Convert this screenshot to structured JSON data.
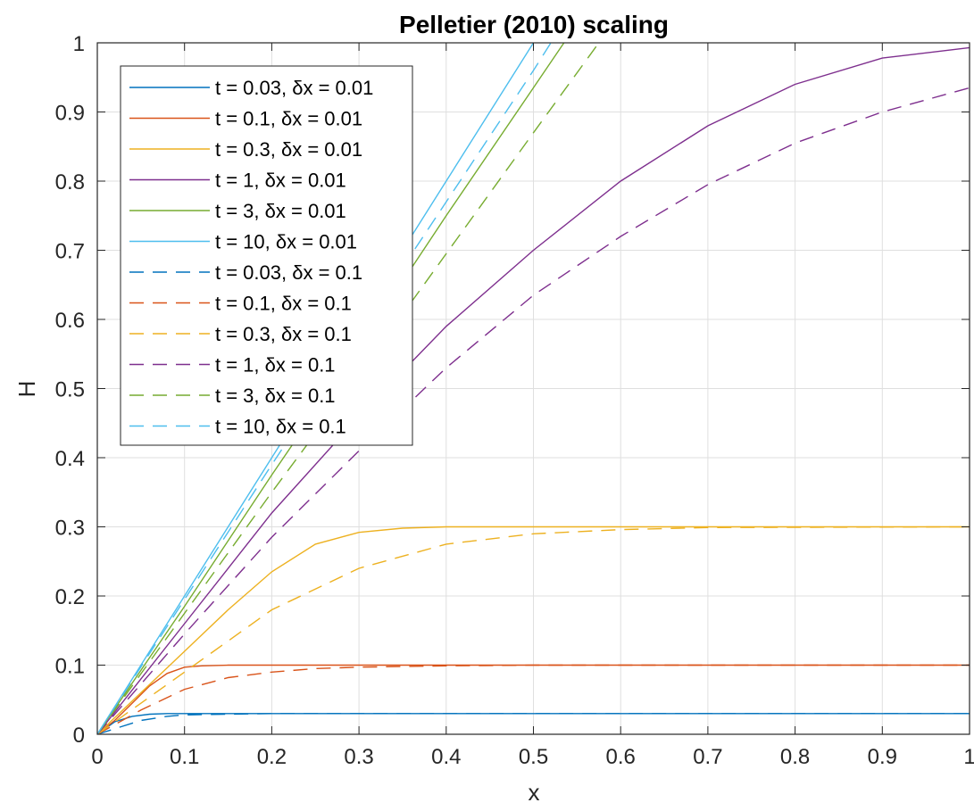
{
  "chart_data": {
    "type": "line",
    "title": "Pelletier (2010) scaling",
    "xlabel": "x",
    "ylabel": "H",
    "xlim": [
      0,
      1
    ],
    "ylim": [
      0,
      1
    ],
    "xticks": [
      0,
      0.1,
      0.2,
      0.3,
      0.4,
      0.5,
      0.6,
      0.7,
      0.8,
      0.9,
      1
    ],
    "xtick_labels": [
      "0",
      "0.1",
      "0.2",
      "0.3",
      "0.4",
      "0.5",
      "0.6",
      "0.7",
      "0.8",
      "0.9",
      "1"
    ],
    "yticks": [
      0,
      0.1,
      0.2,
      0.3,
      0.4,
      0.5,
      0.6,
      0.7,
      0.8,
      0.9,
      1
    ],
    "ytick_labels": [
      "0",
      "0.1",
      "0.2",
      "0.3",
      "0.4",
      "0.5",
      "0.6",
      "0.7",
      "0.8",
      "0.9",
      "1"
    ],
    "grid": true,
    "legend_position": "top-left",
    "series": [
      {
        "name": "t = 0.03, δx = 0.01",
        "color": "#0072BD",
        "dash": "solid",
        "x": [
          0,
          0.02,
          0.04,
          0.06,
          0.08,
          0.1,
          0.15,
          0.2,
          1.0
        ],
        "y": [
          0,
          0.018,
          0.026,
          0.029,
          0.03,
          0.03,
          0.03,
          0.03,
          0.03
        ]
      },
      {
        "name": "t = 0.1, δx = 0.01",
        "color": "#D95319",
        "dash": "solid",
        "x": [
          0,
          0.02,
          0.04,
          0.06,
          0.08,
          0.1,
          0.12,
          0.15,
          0.2,
          0.3,
          1.0
        ],
        "y": [
          0,
          0.02,
          0.045,
          0.07,
          0.088,
          0.097,
          0.099,
          0.1,
          0.1,
          0.1,
          0.1
        ]
      },
      {
        "name": "t = 0.3, δx = 0.01",
        "color": "#EDB120",
        "dash": "solid",
        "x": [
          0,
          0.05,
          0.1,
          0.15,
          0.2,
          0.25,
          0.3,
          0.35,
          0.4,
          0.5,
          1.0
        ],
        "y": [
          0,
          0.06,
          0.12,
          0.18,
          0.235,
          0.275,
          0.292,
          0.298,
          0.3,
          0.3,
          0.3
        ]
      },
      {
        "name": "t = 1, δx = 0.01",
        "color": "#7E2F8E",
        "dash": "solid",
        "x": [
          0,
          0.1,
          0.2,
          0.3,
          0.4,
          0.5,
          0.6,
          0.7,
          0.8,
          0.9,
          1.0
        ],
        "y": [
          0,
          0.16,
          0.32,
          0.46,
          0.59,
          0.7,
          0.8,
          0.88,
          0.94,
          0.978,
          0.993
        ]
      },
      {
        "name": "t = 3, δx = 0.01",
        "color": "#77AC30",
        "dash": "solid",
        "x": [
          0,
          0.1,
          0.2,
          0.3,
          0.4,
          0.5,
          0.535
        ],
        "y": [
          0,
          0.185,
          0.375,
          0.56,
          0.75,
          0.935,
          1.0
        ]
      },
      {
        "name": "t = 10, δx = 0.01",
        "color": "#4DBEEE",
        "dash": "solid",
        "x": [
          0,
          0.1,
          0.2,
          0.3,
          0.4,
          0.5
        ],
        "y": [
          0,
          0.2,
          0.4,
          0.6,
          0.8,
          1.0
        ]
      },
      {
        "name": "t = 0.03, δx = 0.1",
        "color": "#0072BD",
        "dash": "dashed",
        "x": [
          0,
          0.02,
          0.05,
          0.08,
          0.1,
          0.15,
          0.2,
          0.3,
          1.0
        ],
        "y": [
          0,
          0.008,
          0.02,
          0.026,
          0.028,
          0.029,
          0.03,
          0.03,
          0.03
        ]
      },
      {
        "name": "t = 0.1, δx = 0.1",
        "color": "#D95319",
        "dash": "dashed",
        "x": [
          0,
          0.05,
          0.1,
          0.15,
          0.2,
          0.25,
          0.3,
          0.4,
          0.5,
          1.0
        ],
        "y": [
          0,
          0.035,
          0.065,
          0.082,
          0.09,
          0.095,
          0.097,
          0.099,
          0.1,
          0.1
        ]
      },
      {
        "name": "t = 0.3, δx = 0.1",
        "color": "#EDB120",
        "dash": "dashed",
        "x": [
          0,
          0.1,
          0.2,
          0.3,
          0.4,
          0.5,
          0.6,
          0.7,
          1.0
        ],
        "y": [
          0,
          0.09,
          0.18,
          0.24,
          0.275,
          0.29,
          0.296,
          0.299,
          0.3
        ]
      },
      {
        "name": "t = 1, δx = 0.1",
        "color": "#7E2F8E",
        "dash": "dashed",
        "x": [
          0,
          0.1,
          0.2,
          0.3,
          0.4,
          0.5,
          0.6,
          0.7,
          0.8,
          0.9,
          1.0
        ],
        "y": [
          0,
          0.145,
          0.285,
          0.41,
          0.53,
          0.635,
          0.72,
          0.795,
          0.855,
          0.9,
          0.935
        ]
      },
      {
        "name": "t = 3, δx = 0.1",
        "color": "#77AC30",
        "dash": "dashed",
        "x": [
          0,
          0.1,
          0.2,
          0.3,
          0.4,
          0.5,
          0.575
        ],
        "y": [
          0,
          0.175,
          0.35,
          0.52,
          0.695,
          0.87,
          1.0
        ]
      },
      {
        "name": "t = 10, δx = 0.1",
        "color": "#4DBEEE",
        "dash": "dashed",
        "x": [
          0,
          0.1,
          0.2,
          0.3,
          0.4,
          0.5,
          0.52
        ],
        "y": [
          0,
          0.195,
          0.39,
          0.58,
          0.77,
          0.96,
          1.0
        ]
      }
    ]
  }
}
